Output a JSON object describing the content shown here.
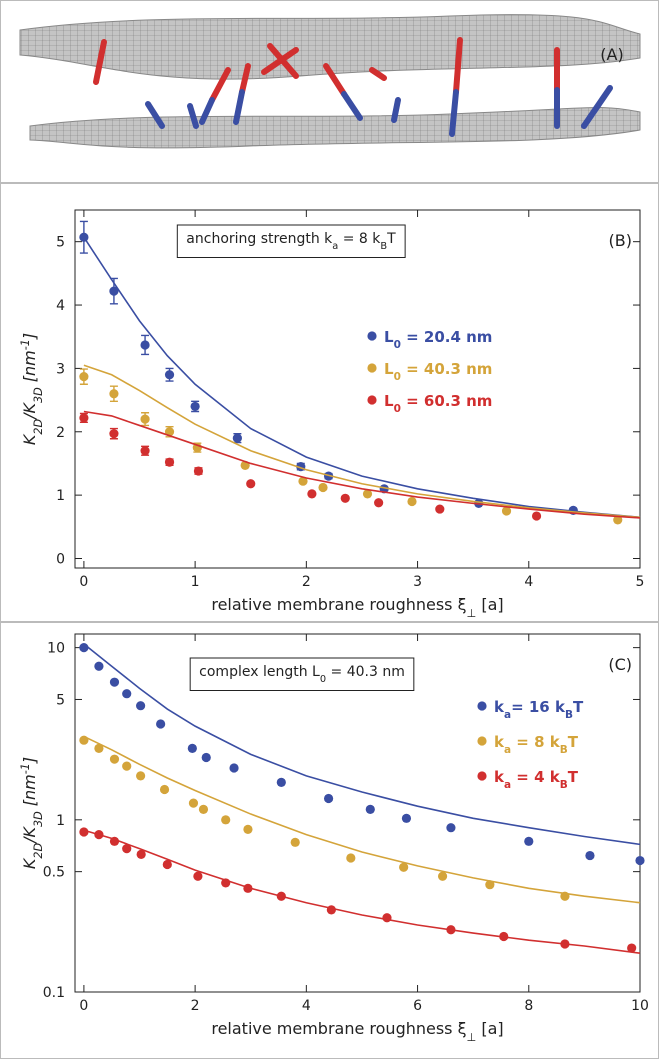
{
  "illustration": {
    "panel_label": "(A)"
  },
  "chart_data": [
    {
      "type": "scatter",
      "panel_label": "(B)",
      "annotation": [
        "anchoring strength k",
        "a",
        " = 8 k",
        "B",
        "T"
      ],
      "xlabel": [
        "relative membrane roughness ξ",
        "⊥",
        " [a]"
      ],
      "ylabel": [
        "K",
        "2D",
        "/K",
        "3D",
        " [nm",
        "-1",
        "]"
      ],
      "xlim": [
        -0.08,
        5
      ],
      "ylim": [
        -0.15,
        5.5
      ],
      "xticks": [
        0,
        1,
        2,
        3,
        4,
        5
      ],
      "yticks": [
        0,
        1,
        2,
        3,
        4,
        5
      ],
      "legend": "center-right",
      "series": [
        {
          "name": [
            "L",
            "0",
            " = 20.4 nm"
          ],
          "color": "#3a4ea3",
          "x": [
            0,
            0.27,
            0.55,
            0.77,
            1.0,
            1.38,
            1.95,
            2.2,
            2.7,
            3.55,
            4.4
          ],
          "values": [
            5.07,
            4.22,
            3.37,
            2.9,
            2.4,
            1.9,
            1.45,
            1.3,
            1.1,
            0.87,
            0.76
          ],
          "errors": [
            0.25,
            0.2,
            0.15,
            0.1,
            0.08,
            0.07,
            0.05,
            0.04,
            null,
            null,
            null
          ],
          "fit": {
            "x": [
              0,
              0.25,
              0.5,
              0.75,
              1,
              1.5,
              2,
              2.5,
              3,
              3.5,
              4,
              4.5,
              5
            ],
            "values": [
              5.07,
              4.4,
              3.75,
              3.2,
              2.75,
              2.05,
              1.6,
              1.3,
              1.1,
              0.95,
              0.82,
              0.73,
              0.65
            ]
          }
        },
        {
          "name": [
            "L",
            "0",
            " = 40.3 nm"
          ],
          "color": "#d4a43a",
          "x": [
            0,
            0.27,
            0.55,
            0.77,
            1.02,
            1.45,
            1.97,
            2.15,
            2.55,
            2.95,
            3.8,
            4.8
          ],
          "values": [
            2.87,
            2.6,
            2.2,
            2.0,
            1.75,
            1.47,
            1.22,
            1.12,
            1.02,
            0.9,
            0.75,
            0.61
          ],
          "errors": [
            0.12,
            0.12,
            0.1,
            0.08,
            0.07,
            null,
            null,
            null,
            null,
            null,
            null,
            null
          ],
          "fit": {
            "x": [
              0,
              0.25,
              0.5,
              0.75,
              1,
              1.5,
              2,
              2.5,
              3,
              3.5,
              4,
              4.5,
              5
            ],
            "values": [
              3.05,
              2.9,
              2.65,
              2.38,
              2.12,
              1.7,
              1.4,
              1.18,
              1.02,
              0.9,
              0.8,
              0.72,
              0.65
            ]
          }
        },
        {
          "name": [
            "L",
            "0",
            " = 60.3 nm"
          ],
          "color": "#d12f2f",
          "x": [
            0,
            0.27,
            0.55,
            0.77,
            1.03,
            1.5,
            2.05,
            2.35,
            2.65,
            3.2,
            4.07
          ],
          "values": [
            2.22,
            1.97,
            1.7,
            1.52,
            1.38,
            1.18,
            1.02,
            0.95,
            0.88,
            0.78,
            0.67
          ],
          "errors": [
            0.07,
            0.08,
            0.07,
            0.05,
            0.05,
            null,
            null,
            null,
            null,
            null,
            null
          ],
          "fit": {
            "x": [
              0,
              0.25,
              0.5,
              0.75,
              1,
              1.5,
              2,
              2.5,
              3,
              3.5,
              4,
              4.5,
              5
            ],
            "values": [
              2.32,
              2.25,
              2.1,
              1.95,
              1.8,
              1.5,
              1.27,
              1.1,
              0.97,
              0.87,
              0.78,
              0.7,
              0.64
            ]
          }
        }
      ]
    },
    {
      "type": "scatter",
      "panel_label": "(C)",
      "yscale": "log",
      "annotation": [
        "complex length L",
        "0",
        " = 40.3 nm"
      ],
      "xlabel": [
        "relative membrane roughness ξ",
        "⊥",
        " [a]"
      ],
      "ylabel": [
        "K",
        "2D",
        "/K",
        "3D",
        " [nm",
        "-1",
        "]"
      ],
      "xlim": [
        -0.16,
        10
      ],
      "ylim": [
        0.1,
        12
      ],
      "xticks": [
        0,
        2,
        4,
        6,
        8,
        10
      ],
      "yticks": [
        0.1,
        0.5,
        1,
        5,
        10
      ],
      "legend": "upper-right",
      "series": [
        {
          "name": [
            "k",
            "a",
            "= 16 k",
            "B",
            "T"
          ],
          "color": "#3a4ea3",
          "x": [
            0,
            0.27,
            0.55,
            0.77,
            1.02,
            1.38,
            1.95,
            2.2,
            2.7,
            3.55,
            4.4,
            5.15,
            5.8,
            6.6,
            8.0,
            9.1,
            10.0
          ],
          "values": [
            10,
            7.8,
            6.3,
            5.4,
            4.6,
            3.6,
            2.6,
            2.3,
            2.0,
            1.65,
            1.33,
            1.15,
            1.02,
            0.9,
            0.75,
            0.62,
            0.58
          ],
          "fit": {
            "x": [
              0,
              0.5,
              1,
              1.5,
              2,
              3,
              4,
              5,
              6,
              7,
              8,
              9,
              10
            ],
            "values": [
              10.5,
              7.8,
              5.8,
              4.4,
              3.5,
              2.4,
              1.8,
              1.45,
              1.2,
              1.02,
              0.9,
              0.8,
              0.72
            ]
          }
        },
        {
          "name": [
            "k",
            "a",
            " =  8 k",
            "B",
            "T"
          ],
          "color": "#d4a43a",
          "x": [
            0,
            0.27,
            0.55,
            0.77,
            1.02,
            1.45,
            1.97,
            2.15,
            2.55,
            2.95,
            3.8,
            4.8,
            5.75,
            6.45,
            7.3,
            8.65
          ],
          "values": [
            2.9,
            2.6,
            2.25,
            2.05,
            1.8,
            1.5,
            1.25,
            1.15,
            1.0,
            0.88,
            0.74,
            0.6,
            0.53,
            0.47,
            0.42,
            0.36
          ],
          "fit": {
            "x": [
              0,
              0.5,
              1,
              1.5,
              2,
              3,
              4,
              5,
              6,
              7,
              8,
              9,
              10
            ],
            "values": [
              3.05,
              2.55,
              2.1,
              1.75,
              1.48,
              1.08,
              0.82,
              0.65,
              0.54,
              0.46,
              0.4,
              0.36,
              0.33
            ]
          }
        },
        {
          "name": [
            "k",
            "a",
            " =  4 k",
            "B",
            "T"
          ],
          "color": "#d12f2f",
          "x": [
            0,
            0.27,
            0.55,
            0.77,
            1.03,
            1.5,
            2.05,
            2.55,
            2.95,
            3.55,
            4.45,
            5.45,
            6.6,
            7.55,
            8.65,
            9.85
          ],
          "values": [
            0.85,
            0.82,
            0.75,
            0.68,
            0.63,
            0.55,
            0.47,
            0.43,
            0.4,
            0.36,
            0.3,
            0.27,
            0.23,
            0.21,
            0.19,
            0.18
          ],
          "fit": {
            "x": [
              0,
              0.5,
              1,
              1.5,
              2,
              3,
              4,
              5,
              6,
              7,
              8,
              9,
              10
            ],
            "values": [
              0.87,
              0.78,
              0.68,
              0.59,
              0.51,
              0.4,
              0.33,
              0.28,
              0.245,
              0.22,
              0.2,
              0.185,
              0.168
            ]
          }
        }
      ]
    }
  ]
}
